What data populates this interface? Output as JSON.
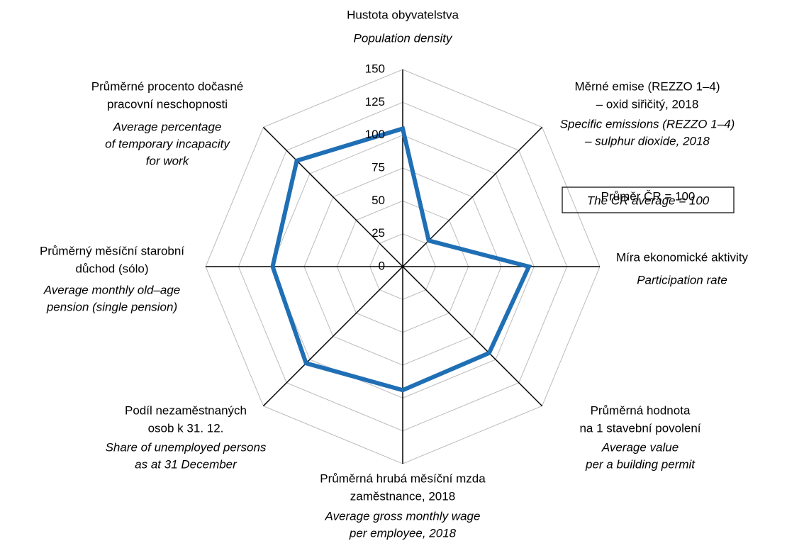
{
  "chart_data": {
    "type": "radar",
    "categories": [
      [
        "Hustota obyvatelstva"
      ],
      [
        "Měrné emise (REZZO 1–4)",
        "– oxid siřičitý, 2018"
      ],
      [
        "Míra ekonomické aktivity"
      ],
      [
        "Průměrná hodnota",
        "na 1 stavební povolení"
      ],
      [
        "Průměrná hrubá měsíční mzda",
        "zaměstnance, 2018"
      ],
      [
        "Podíl nezaměstnaných",
        "osob k 31. 12."
      ],
      [
        "Průměrný měsíční starobní",
        "důchod (sólo)"
      ],
      [
        "Průměrné procento dočasné",
        "pracovní neschopnosti"
      ]
    ],
    "categories_en": [
      [
        "Population density"
      ],
      [
        "Specific emissions (REZZO 1–4)",
        "– sulphur dioxide, 2018"
      ],
      [
        "Participation rate"
      ],
      [
        "Average value",
        "per a building permit"
      ],
      [
        "Average gross monthly wage",
        "per employee, 2018"
      ],
      [
        "Share of unemployed persons",
        "as at 31 December"
      ],
      [
        "Average monthly old–age",
        "pension (single pension)"
      ],
      [
        "Average percentage",
        "of temporary incapacity",
        "for work"
      ]
    ],
    "series": [
      {
        "color": "#1f6fb5",
        "values": [
          105,
          28,
          96,
          93,
          94,
          104,
          99,
          114
        ]
      }
    ],
    "ylim": [
      0,
      150
    ],
    "yticks": [
      0,
      25,
      50,
      75,
      100,
      125,
      150
    ],
    "grid": true,
    "annotation": [
      "Průměr ČR = 100",
      "The CR average = 100"
    ]
  }
}
